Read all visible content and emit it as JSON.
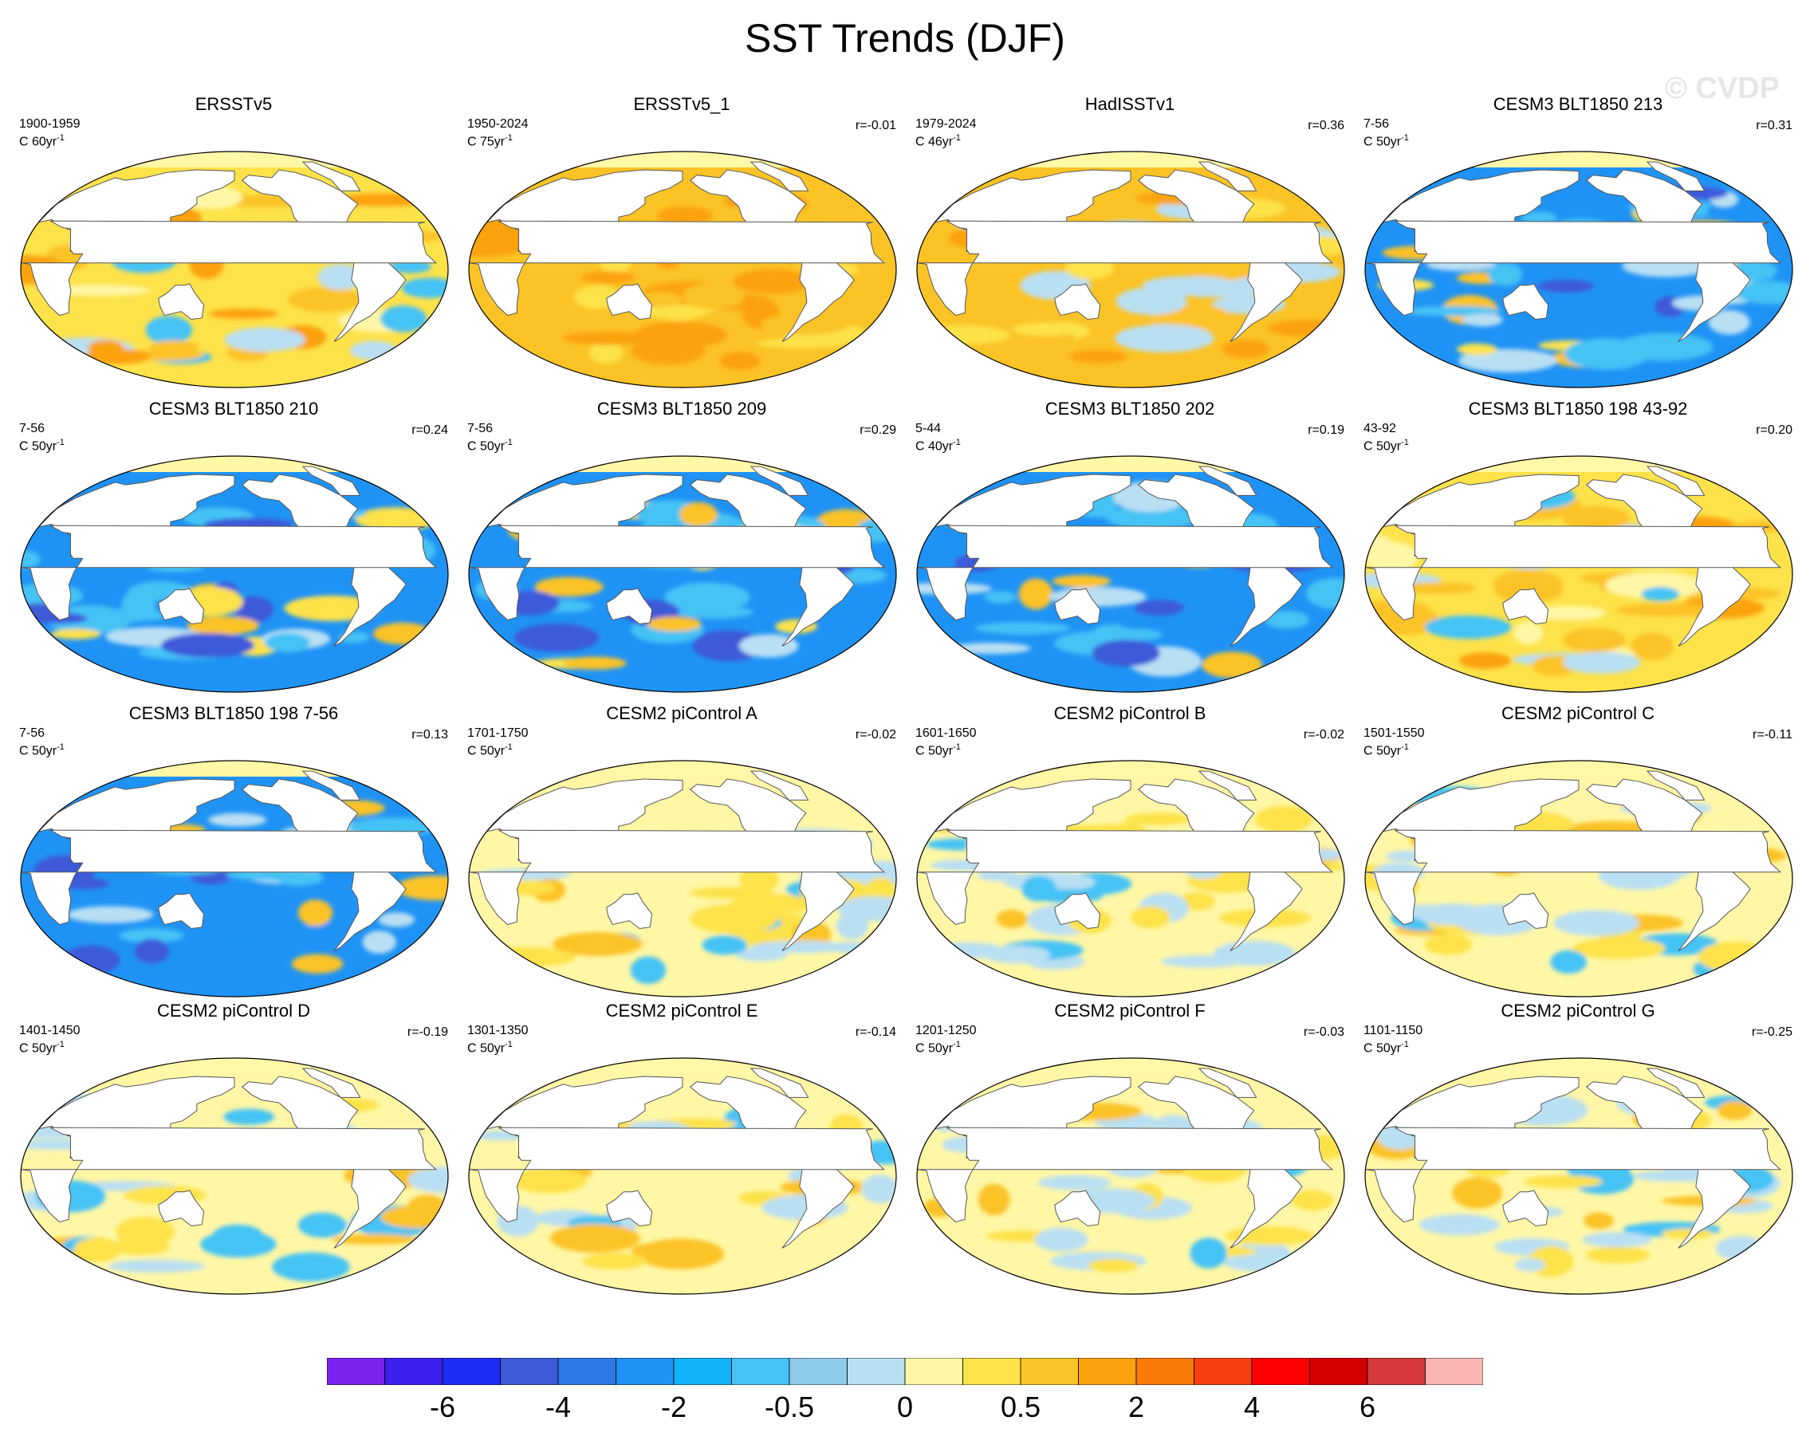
{
  "title": "SST Trends (DJF)",
  "watermark": "© CVDP",
  "units_prefix": "C",
  "panels": [
    {
      "title": "ERSSTv5",
      "period": "1900-1959",
      "units": "60yr",
      "corr": "",
      "theme": "warm"
    },
    {
      "title": "ERSSTv5_1",
      "period": "1950-2024",
      "units": "75yr",
      "corr": "r=-0.01",
      "theme": "hot"
    },
    {
      "title": "HadISSTv1",
      "period": "1979-2024",
      "units": "46yr",
      "corr": "r=0.36",
      "theme": "warmcoolpac"
    },
    {
      "title": "CESM3 BLT1850 213",
      "period": "7-56",
      "units": "50yr",
      "corr": "r=0.31",
      "theme": "cool"
    },
    {
      "title": "CESM3 BLT1850 210",
      "period": "7-56",
      "units": "50yr",
      "corr": "r=0.24",
      "theme": "cool"
    },
    {
      "title": "CESM3 BLT1850 209",
      "period": "7-56",
      "units": "50yr",
      "corr": "r=0.29",
      "theme": "cool"
    },
    {
      "title": "CESM3 BLT1850 202",
      "period": "5-44",
      "units": "40yr",
      "corr": "r=0.19",
      "theme": "cool"
    },
    {
      "title": "CESM3 BLT1850 198 43-92",
      "period": "43-92",
      "units": "50yr",
      "corr": "r=0.20",
      "theme": "warm"
    },
    {
      "title": "CESM3 BLT1850 198 7-56",
      "period": "7-56",
      "units": "50yr",
      "corr": "r=0.13",
      "theme": "coolstrong"
    },
    {
      "title": "CESM2 piControl A",
      "period": "1701-1750",
      "units": "50yr",
      "corr": "r=-0.02",
      "theme": "mixed"
    },
    {
      "title": "CESM2 piControl B",
      "period": "1601-1650",
      "units": "50yr",
      "corr": "r=-0.02",
      "theme": "mixed"
    },
    {
      "title": "CESM2 piControl C",
      "period": "1501-1550",
      "units": "50yr",
      "corr": "r=-0.11",
      "theme": "mixed"
    },
    {
      "title": "CESM2 piControl D",
      "period": "1401-1450",
      "units": "50yr",
      "corr": "r=-0.19",
      "theme": "mixed"
    },
    {
      "title": "CESM2 piControl E",
      "period": "1301-1350",
      "units": "50yr",
      "corr": "r=-0.14",
      "theme": "mixed"
    },
    {
      "title": "CESM2 piControl F",
      "period": "1201-1250",
      "units": "50yr",
      "corr": "r=-0.03",
      "theme": "mixed"
    },
    {
      "title": "CESM2 piControl G",
      "period": "1101-1150",
      "units": "50yr",
      "corr": "r=-0.25",
      "theme": "mixed"
    }
  ],
  "colorbar": {
    "colors": [
      "#7b22f0",
      "#3d1ff0",
      "#1a2cf5",
      "#3d5ad9",
      "#2f78e8",
      "#1f93f5",
      "#11b3f8",
      "#45c3f5",
      "#8fcbea",
      "#b9dff3",
      "#fff7a6",
      "#fde24a",
      "#fbc325",
      "#fca20f",
      "#fb7a0a",
      "#f8400f",
      "#ff0000",
      "#d60000",
      "#d63a3a",
      "#fbb4b4"
    ],
    "labels": [
      "-6",
      "-4",
      "-2",
      "-0.5",
      "0",
      "0.5",
      "2",
      "4",
      "6"
    ]
  },
  "palette": {
    "land": "#ffffff",
    "coast": "#555555",
    "arctic": "#fff8a6",
    "neutral": "#fff7a6",
    "lightblue": "#b9dff3",
    "blue": "#45c3f5",
    "midblue": "#1f93f5",
    "darkblue": "#3d5ad9",
    "yellow": "#fde24a",
    "orange": "#fbc325",
    "deeporange": "#fca20f",
    "red": "#f8400f"
  }
}
